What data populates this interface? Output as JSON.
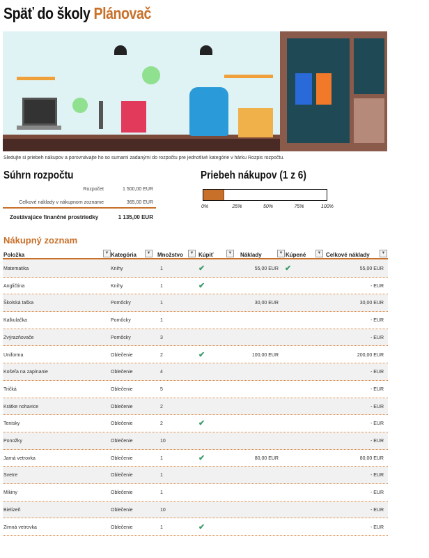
{
  "title": {
    "part1": "Späť do školy",
    "part2": "Plánovač"
  },
  "description": "Sledujte si priebeh nákupov a porovnávajte ho so sumami zadanými do rozpočtu pre jednotlivé kategórie v hárku Rozpis rozpočtu.",
  "summary": {
    "heading": "Súhrn rozpočtu",
    "budget_label": "Rozpočet",
    "budget_value": "1 500,00 EUR",
    "cost_label": "Celkové náklady v nákupnom zozname",
    "cost_value": "365,00 EUR",
    "remaining_label": "Zostávajúce finančné prostriedky",
    "remaining_value": "1 135,00 EUR"
  },
  "progress": {
    "heading": "Priebeh nákupov (1 z 6)",
    "percent": 16.7,
    "ticks": [
      "0%",
      "25%",
      "50%",
      "75%",
      "100%"
    ],
    "color": "#c8702a"
  },
  "list": {
    "heading": "Nákupný zoznam",
    "columns": [
      "Položka",
      "Kategória",
      "Množstvo",
      "Kúpiť",
      "Náklady",
      "Kúpené",
      "Celkové náklady"
    ],
    "rows": [
      [
        "Matematika",
        "Knihy",
        "1",
        true,
        "55,00 EUR",
        true,
        "55,00 EUR"
      ],
      [
        "Angličtina",
        "Knihy",
        "1",
        true,
        "",
        false,
        "-   EUR"
      ],
      [
        "Školská taška",
        "Pomôcky",
        "1",
        false,
        "30,00 EUR",
        false,
        "30,00 EUR"
      ],
      [
        "Kalkulačka",
        "Pomôcky",
        "1",
        false,
        "",
        false,
        "-   EUR"
      ],
      [
        "Zvýrazňovače",
        "Pomôcky",
        "3",
        false,
        "",
        false,
        "-   EUR"
      ],
      [
        "Uniforma",
        "Oblečenie",
        "2",
        true,
        "100,00 EUR",
        false,
        "200,00 EUR"
      ],
      [
        "Košeľa na zapínanie",
        "Oblečenie",
        "4",
        false,
        "",
        false,
        "-   EUR"
      ],
      [
        "Tričká",
        "Oblečenie",
        "5",
        false,
        "",
        false,
        "-   EUR"
      ],
      [
        "Krátke nohavice",
        "Oblečenie",
        "2",
        false,
        "",
        false,
        "-   EUR"
      ],
      [
        "Tenisky",
        "Oblečenie",
        "2",
        true,
        "",
        false,
        "-   EUR"
      ],
      [
        "Ponožky",
        "Oblečenie",
        "10",
        false,
        "",
        false,
        "-   EUR"
      ],
      [
        "Jarná vetrovka",
        "Oblečenie",
        "1",
        true,
        "80,00 EUR",
        false,
        "80,00 EUR"
      ],
      [
        "Svetre",
        "Oblečenie",
        "1",
        false,
        "",
        false,
        "-   EUR"
      ],
      [
        "Mikiny",
        "Oblečenie",
        "1",
        false,
        "",
        false,
        "-   EUR"
      ],
      [
        "Bielizeň",
        "Oblečenie",
        "10",
        false,
        "",
        false,
        "-   EUR"
      ],
      [
        "Zimná vetrovka",
        "Oblečenie",
        "1",
        true,
        "",
        false,
        "-   EUR"
      ]
    ],
    "check_glyph": "✔",
    "dropdown_glyph": "▼"
  }
}
